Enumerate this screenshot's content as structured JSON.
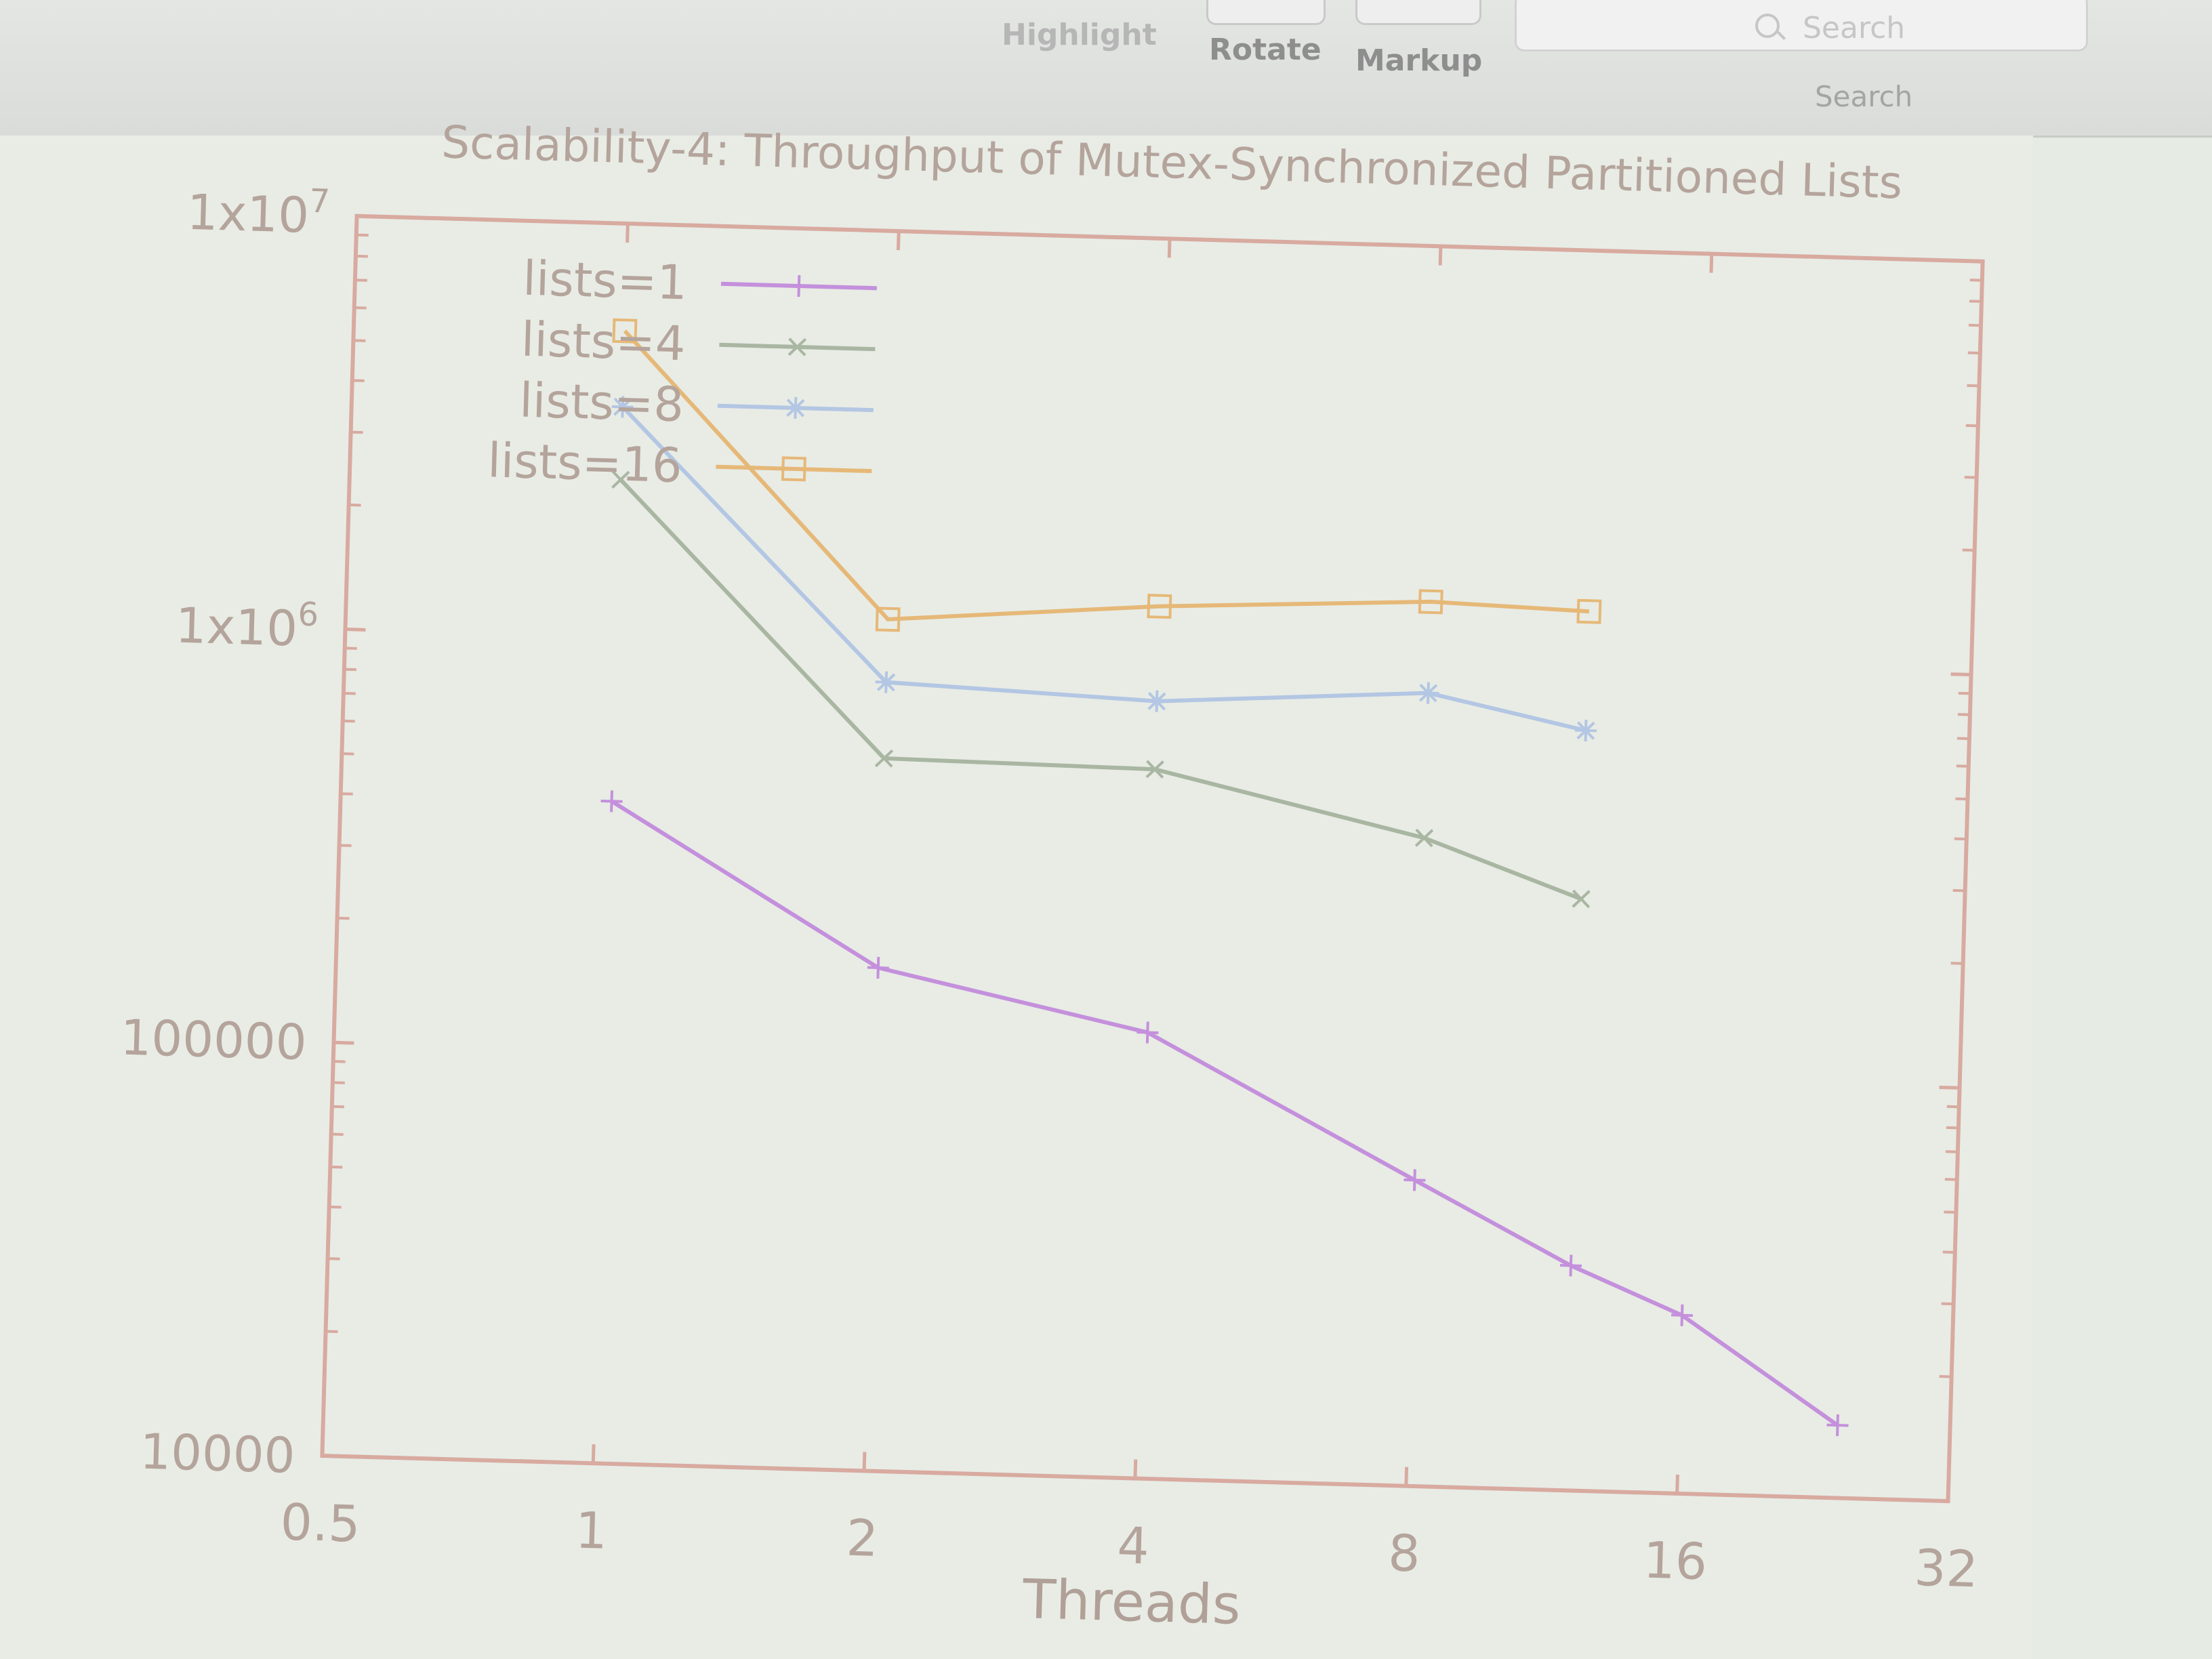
{
  "toolbar": {
    "highlight_label": "Highlight",
    "rotate_label": "Rotate",
    "markup_label": "Markup",
    "search_placeholder": "Search",
    "search_caption": "Search"
  },
  "chart_data": {
    "type": "line",
    "title": "Scalability-4: Throughput of Mutex-Synchronized Partitioned Lists",
    "xlabel": "Threads",
    "ylabel": "",
    "x_scale": "log2",
    "y_scale": "log10",
    "xlim": [
      0.5,
      32
    ],
    "ylim": [
      10000,
      10000000
    ],
    "x_ticks": [
      "0.5",
      "1",
      "2",
      "4",
      "8",
      "16",
      "32"
    ],
    "y_ticks": [
      "10000",
      "100000",
      "1x10^6",
      "1x10^7"
    ],
    "legend_position": "top-left",
    "series": [
      {
        "name": "lists=1",
        "color": "#c490dc",
        "marker": "+",
        "x": [
          1,
          2,
          4,
          8,
          12,
          16,
          24
        ],
        "y": [
          400000,
          165000,
          120000,
          55000,
          35000,
          27000,
          15000
        ]
      },
      {
        "name": "lists=4",
        "color": "#a9b6a2",
        "marker": "x",
        "x": [
          1,
          2,
          4,
          8,
          12
        ],
        "y": [
          2400000,
          530000,
          520000,
          370000,
          270000
        ]
      },
      {
        "name": "lists=8",
        "color": "#b3c6e3",
        "marker": "*",
        "x": [
          1,
          2,
          4,
          8,
          12
        ],
        "y": [
          3600000,
          810000,
          760000,
          830000,
          690000
        ]
      },
      {
        "name": "lists=16",
        "color": "#e6b878",
        "marker": "square",
        "x": [
          1,
          2,
          4,
          8,
          12
        ],
        "y": [
          5500000,
          1150000,
          1290000,
          1380000,
          1340000
        ]
      }
    ]
  }
}
